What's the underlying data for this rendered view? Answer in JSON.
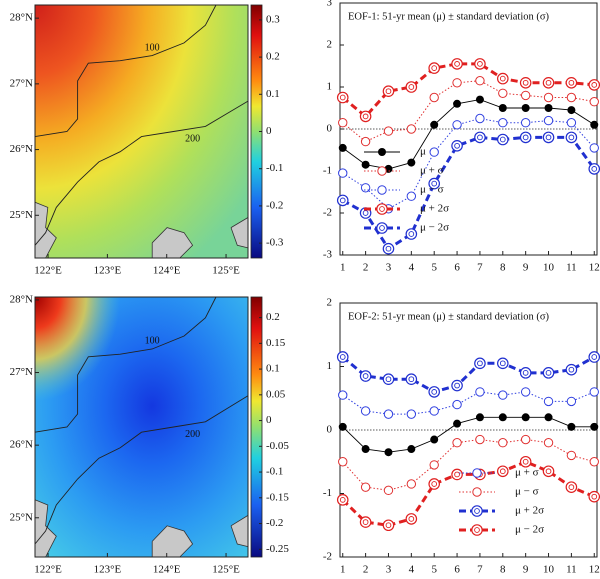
{
  "chart_data": [
    {
      "type": "map",
      "xlim": [
        121.78,
        125.37
      ],
      "ylim": [
        24.35,
        28.2
      ],
      "xticks": [
        {
          "value": 122,
          "label": "122°E"
        },
        {
          "value": 123,
          "label": "123°E"
        },
        {
          "value": 124,
          "label": "124°E"
        },
        {
          "value": 125,
          "label": "125°E"
        }
      ],
      "yticks": [
        {
          "value": 25,
          "label": "25°N"
        },
        {
          "value": 26,
          "label": "26°N"
        },
        {
          "value": 27,
          "label": "27°N"
        },
        {
          "value": 28,
          "label": "28°N"
        }
      ],
      "colorbar": {
        "lim": [
          -0.34,
          0.34
        ],
        "ticks": [
          0.3,
          0.2,
          0.1,
          0,
          -0.1,
          -0.2,
          -0.3
        ]
      },
      "contour_labels": [
        "100",
        "200"
      ]
    },
    {
      "type": "line",
      "title": "EOF-1: 51-yr mean (μ) ± standard deviation (σ)",
      "x": [
        1,
        2,
        3,
        4,
        5,
        6,
        7,
        8,
        9,
        10,
        11,
        12
      ],
      "xlim": [
        0.88,
        12.12
      ],
      "xticks": [
        1,
        2,
        3,
        4,
        5,
        6,
        7,
        8,
        9,
        10,
        11,
        12
      ],
      "ylim": [
        -3,
        3
      ],
      "yticks": [
        -3,
        -2,
        -1,
        0,
        1,
        2,
        3
      ],
      "legend": "lower left",
      "series": [
        {
          "name": "μ",
          "color": "#000000",
          "style": "solid",
          "marker": "filled",
          "values": [
            -0.45,
            -0.85,
            -0.95,
            -0.8,
            0.1,
            0.6,
            0.7,
            0.5,
            0.5,
            0.5,
            0.45,
            0.1
          ]
        },
        {
          "name": "μ + σ",
          "color": "#e03030",
          "style": "dotted",
          "marker": "open",
          "values": [
            0.15,
            -0.3,
            -0.05,
            0.0,
            0.75,
            1.1,
            1.15,
            0.85,
            0.8,
            0.75,
            0.75,
            0.65
          ]
        },
        {
          "name": "μ − σ",
          "color": "#3040e0",
          "style": "dotted",
          "marker": "open",
          "values": [
            -1.05,
            -1.4,
            -1.9,
            -1.6,
            -0.55,
            0.1,
            0.25,
            0.15,
            0.15,
            0.2,
            0.15,
            -0.45
          ]
        },
        {
          "name": "μ + 2σ",
          "color": "#e02020",
          "style": "dashed",
          "marker": "double",
          "values": [
            0.75,
            0.3,
            0.9,
            1.0,
            1.45,
            1.55,
            1.55,
            1.2,
            1.1,
            1.1,
            1.1,
            1.05
          ]
        },
        {
          "name": "μ − 2σ",
          "color": "#2030d0",
          "style": "dashed",
          "marker": "double",
          "values": [
            -1.7,
            -2.0,
            -2.85,
            -2.5,
            -1.3,
            -0.4,
            -0.2,
            -0.25,
            -0.2,
            -0.2,
            -0.2,
            -0.95
          ]
        }
      ]
    },
    {
      "type": "map",
      "xlim": [
        121.78,
        125.37
      ],
      "ylim": [
        24.46,
        28.04
      ],
      "xticks": [
        {
          "value": 122,
          "label": "122°E"
        },
        {
          "value": 123,
          "label": "123°E"
        },
        {
          "value": 124,
          "label": "124°E"
        },
        {
          "value": 125,
          "label": "125°E"
        }
      ],
      "yticks": [
        {
          "value": 25,
          "label": "25°N"
        },
        {
          "value": 26,
          "label": "26°N"
        },
        {
          "value": 27,
          "label": "27°N"
        },
        {
          "value": 28,
          "label": "28°N"
        }
      ],
      "colorbar": {
        "lim": [
          -0.265,
          0.24
        ],
        "ticks": [
          0.2,
          0.15,
          0.1,
          0.05,
          0,
          -0.05,
          -0.1,
          -0.15,
          -0.2,
          -0.25
        ]
      },
      "contour_labels": [
        "100",
        "200"
      ]
    },
    {
      "type": "line",
      "title": "EOF-2: 51-yr mean (μ) ± standard deviation (σ)",
      "x": [
        1,
        2,
        3,
        4,
        5,
        6,
        7,
        8,
        9,
        10,
        11,
        12
      ],
      "xlim": [
        0.88,
        12.12
      ],
      "xticks": [
        1,
        2,
        3,
        4,
        5,
        6,
        7,
        8,
        9,
        10,
        11,
        12
      ],
      "ylim": [
        -2,
        2
      ],
      "yticks": [
        -2,
        -1,
        0,
        1,
        2
      ],
      "legend": "lower right",
      "series": [
        {
          "color": "#000000",
          "style": "solid",
          "marker": "filled",
          "values": [
            0.05,
            -0.3,
            -0.35,
            -0.3,
            -0.15,
            0.1,
            0.2,
            0.2,
            0.2,
            0.2,
            0.05,
            0.05
          ]
        },
        {
          "name": "μ + σ",
          "color": "#3040e0",
          "style": "dotted",
          "marker": "open",
          "values": [
            0.55,
            0.3,
            0.25,
            0.25,
            0.3,
            0.4,
            0.6,
            0.55,
            0.6,
            0.45,
            0.45,
            0.6
          ]
        },
        {
          "name": "μ − σ",
          "color": "#e03030",
          "style": "dotted",
          "marker": "open",
          "values": [
            -0.5,
            -0.9,
            -0.95,
            -0.85,
            -0.55,
            -0.2,
            -0.15,
            -0.2,
            -0.15,
            -0.2,
            -0.4,
            -0.5
          ]
        },
        {
          "name": "μ + 2σ",
          "color": "#2030d0",
          "style": "dashed",
          "marker": "double",
          "values": [
            1.15,
            0.85,
            0.8,
            0.8,
            0.6,
            0.7,
            1.05,
            1.05,
            0.9,
            0.9,
            0.95,
            1.15
          ]
        },
        {
          "name": "μ − 2σ",
          "color": "#e02020",
          "style": "dashed",
          "marker": "double",
          "values": [
            -1.1,
            -1.45,
            -1.5,
            -1.4,
            -0.85,
            -0.7,
            -0.7,
            -0.65,
            -0.5,
            -0.65,
            -0.9,
            -1.05
          ]
        }
      ]
    }
  ]
}
